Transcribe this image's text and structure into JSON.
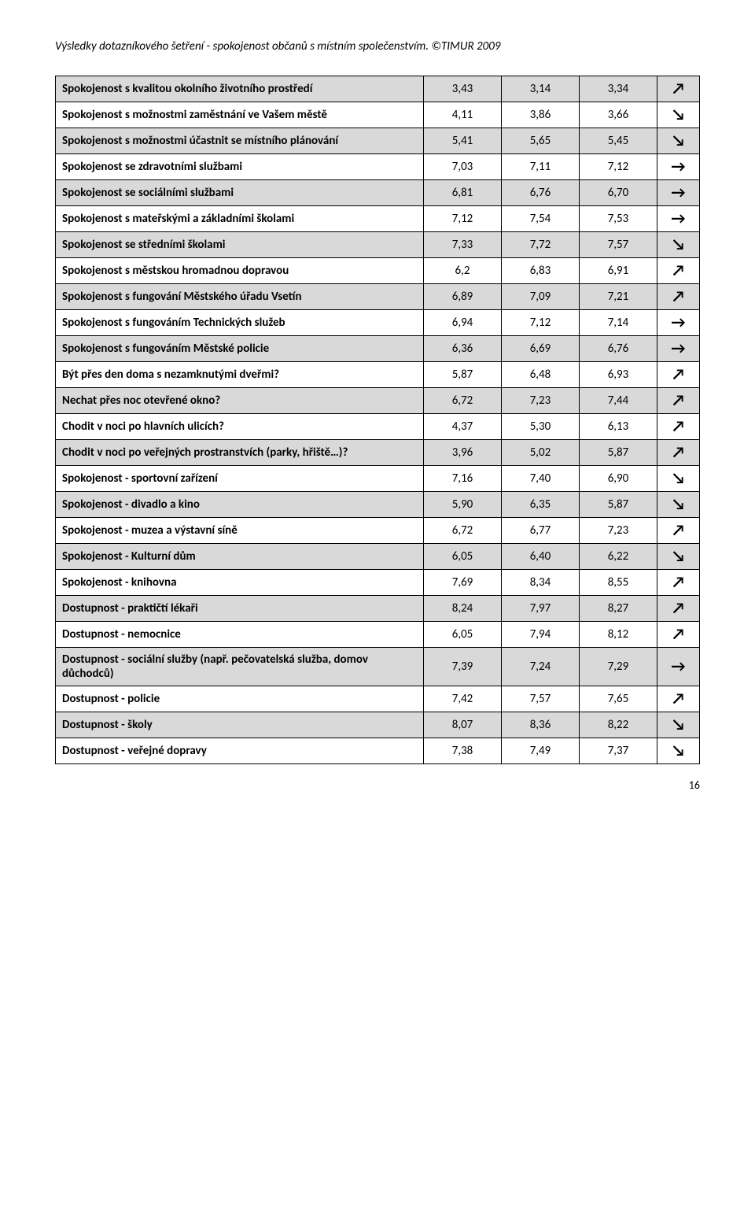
{
  "header": "Výsledky dotazníkového šetření - spokojenost občanů s místním společenstvím. ©TIMUR 2009",
  "footer_page": "16",
  "arrow_glyphs": {
    "up": "↗",
    "down": "↘",
    "right": "→"
  },
  "rows": [
    {
      "label": "Spokojenost s kvalitou okolního životního prostředí",
      "v1": "3,43",
      "v2": "3,14",
      "v3": "3,34",
      "trend": "up",
      "shade": true
    },
    {
      "label": "Spokojenost s možnostmi zaměstnání ve Vašem městě",
      "v1": "4,11",
      "v2": "3,86",
      "v3": "3,66",
      "trend": "down",
      "shade": false
    },
    {
      "label": "Spokojenost s možnostmi účastnit se místního plánování",
      "v1": "5,41",
      "v2": "5,65",
      "v3": "5,45",
      "trend": "down",
      "shade": true
    },
    {
      "label": "Spokojenost se zdravotními službami",
      "v1": "7,03",
      "v2": "7,11",
      "v3": "7,12",
      "trend": "right",
      "shade": false
    },
    {
      "label": "Spokojenost se sociálními službami",
      "v1": "6,81",
      "v2": "6,76",
      "v3": "6,70",
      "trend": "right",
      "shade": true
    },
    {
      "label": "Spokojenost s mateřskými a základními školami",
      "v1": "7,12",
      "v2": "7,54",
      "v3": "7,53",
      "trend": "right",
      "shade": false
    },
    {
      "label": "Spokojenost se středními školami",
      "v1": "7,33",
      "v2": "7,72",
      "v3": "7,57",
      "trend": "down",
      "shade": true
    },
    {
      "label": "Spokojenost s městskou hromadnou dopravou",
      "v1": "6,2",
      "v2": "6,83",
      "v3": "6,91",
      "trend": "up",
      "shade": false
    },
    {
      "label": "Spokojenost s fungování Městského úřadu Vsetín",
      "v1": "6,89",
      "v2": "7,09",
      "v3": "7,21",
      "trend": "up",
      "shade": true
    },
    {
      "label": "Spokojenost s fungováním Technických služeb",
      "v1": "6,94",
      "v2": "7,12",
      "v3": "7,14",
      "trend": "right",
      "shade": false
    },
    {
      "label": "Spokojenost s fungováním Městské policie",
      "v1": "6,36",
      "v2": "6,69",
      "v3": "6,76",
      "trend": "right",
      "shade": true
    },
    {
      "label": "Být přes den doma s nezamknutými dveřmi?",
      "v1": "5,87",
      "v2": "6,48",
      "v3": "6,93",
      "trend": "up",
      "shade": false
    },
    {
      "label": "Nechat přes noc otevřené okno?",
      "v1": "6,72",
      "v2": "7,23",
      "v3": "7,44",
      "trend": "up",
      "shade": true
    },
    {
      "label": "Chodit v noci po hlavních ulicích?",
      "v1": "4,37",
      "v2": "5,30",
      "v3": "6,13",
      "trend": "up",
      "shade": false
    },
    {
      "label": "Chodit v noci po veřejných prostranstvích (parky, hřiště…)?",
      "v1": "3,96",
      "v2": "5,02",
      "v3": "5,87",
      "trend": "up",
      "shade": true
    },
    {
      "label": "Spokojenost - sportovní zařízení",
      "v1": "7,16",
      "v2": "7,40",
      "v3": "6,90",
      "trend": "down",
      "shade": false
    },
    {
      "label": "Spokojenost - divadlo a kino",
      "v1": "5,90",
      "v2": "6,35",
      "v3": "5,87",
      "trend": "down",
      "shade": true
    },
    {
      "label": "Spokojenost - muzea a výstavní síně",
      "v1": "6,72",
      "v2": "6,77",
      "v3": "7,23",
      "trend": "up",
      "shade": false
    },
    {
      "label": "Spokojenost - Kulturní dům",
      "v1": "6,05",
      "v2": "6,40",
      "v3": "6,22",
      "trend": "down",
      "shade": true
    },
    {
      "label": "Spokojenost - knihovna",
      "v1": "7,69",
      "v2": "8,34",
      "v3": "8,55",
      "trend": "up",
      "shade": false
    },
    {
      "label": "Dostupnost - praktičtí lékaři",
      "v1": "8,24",
      "v2": "7,97",
      "v3": "8,27",
      "trend": "up",
      "shade": true
    },
    {
      "label": "Dostupnost - nemocnice",
      "v1": "6,05",
      "v2": "7,94",
      "v3": "8,12",
      "trend": "up",
      "shade": false
    },
    {
      "label": "Dostupnost - sociální služby (např. pečovatelská služba, domov důchodců)",
      "v1": "7,39",
      "v2": "7,24",
      "v3": "7,29",
      "trend": "right",
      "shade": true
    },
    {
      "label": "Dostupnost - policie",
      "v1": "7,42",
      "v2": "7,57",
      "v3": "7,65",
      "trend": "up",
      "shade": false
    },
    {
      "label": "Dostupnost - školy",
      "v1": "8,07",
      "v2": "8,36",
      "v3": "8,22",
      "trend": "down",
      "shade": true
    },
    {
      "label": "Dostupnost - veřejné dopravy",
      "v1": "7,38",
      "v2": "7,49",
      "v3": "7,37",
      "trend": "down",
      "shade": false
    }
  ]
}
